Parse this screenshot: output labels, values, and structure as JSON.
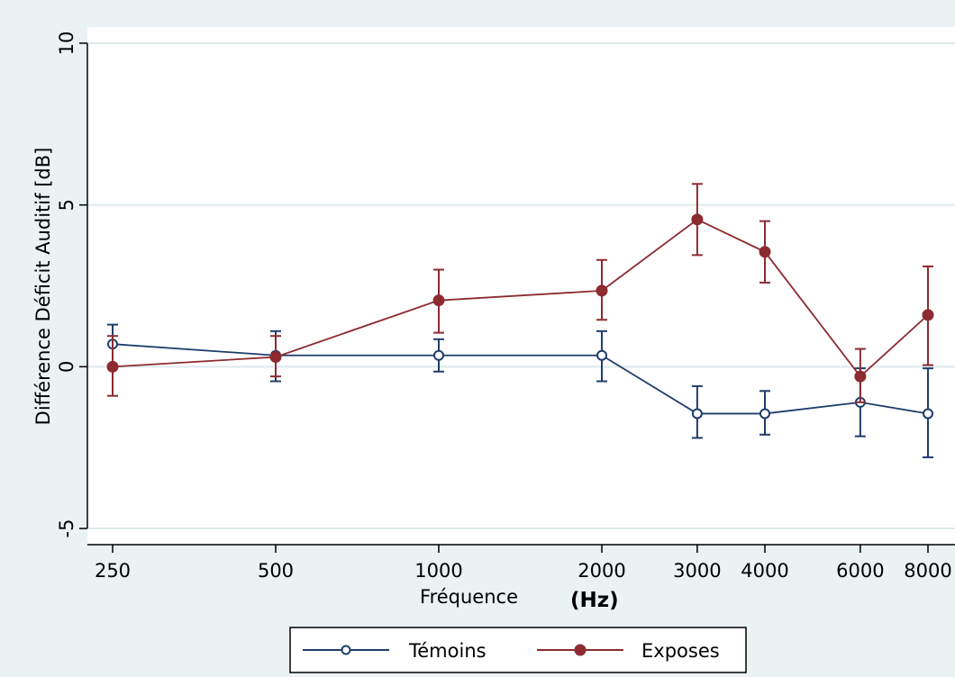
{
  "chart_data": {
    "type": "line",
    "xlabel": "Fréquence",
    "xlabel_unit": "(Hz)",
    "ylabel": "Différence Déficit Auditif [dB]",
    "ylim": [
      -5.5,
      10.5
    ],
    "yticks": [
      -5,
      0,
      5,
      10
    ],
    "ytick_labels": [
      "-5",
      "0",
      "5",
      "10"
    ],
    "categories": [
      "250",
      "500",
      "1000",
      "2000",
      "3000",
      "4000",
      "6000",
      "8000"
    ],
    "x": [
      250,
      500,
      1000,
      2000,
      3000,
      4000,
      6000,
      8000
    ],
    "x_scale": "log",
    "grid": {
      "horizontal": true,
      "vertical": false,
      "color": "#dde9eb"
    },
    "legend_position": "bottom",
    "series": [
      {
        "name": "Témoins",
        "color": "#1f3d6b",
        "marker": "hollow-circle",
        "values": [
          0.7,
          0.35,
          0.35,
          0.35,
          -1.45,
          -1.45,
          -1.1,
          -1.45
        ],
        "err_low": [
          0.0,
          -0.45,
          -0.15,
          -0.45,
          -2.2,
          -2.1,
          -2.15,
          -2.8
        ],
        "err_high": [
          1.3,
          1.1,
          0.85,
          1.1,
          -0.6,
          -0.75,
          -0.05,
          -0.05
        ]
      },
      {
        "name": "Exposes",
        "color": "#8c2b30",
        "marker": "filled-circle",
        "values": [
          0.0,
          0.3,
          2.05,
          2.35,
          4.55,
          3.55,
          -0.3,
          1.6
        ],
        "err_low": [
          -0.9,
          -0.3,
          1.05,
          1.45,
          3.45,
          2.6,
          -1.1,
          0.05
        ],
        "err_high": [
          0.95,
          0.95,
          3.0,
          3.3,
          5.65,
          4.5,
          0.55,
          3.1
        ]
      }
    ]
  }
}
